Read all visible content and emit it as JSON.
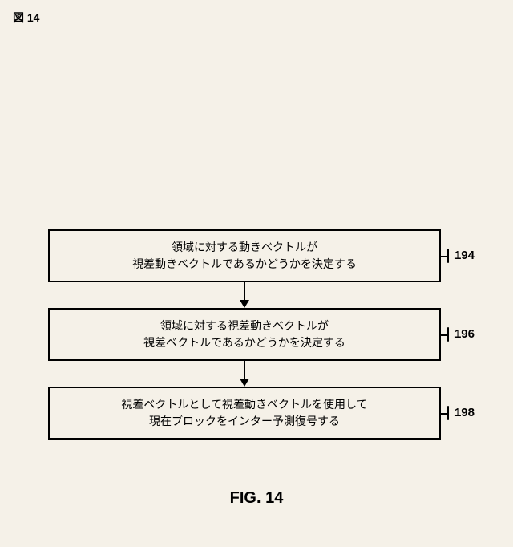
{
  "header_label": "図 14",
  "flowchart": {
    "type": "flowchart",
    "box_border_color": "#000000",
    "box_border_width": 2,
    "background_color": "#f5f1e8",
    "nodes": [
      {
        "id": "n1",
        "line1": "領域に対する動きベクトルが",
        "line2": "視差動きベクトルであるかどうかを決定する",
        "ref": "194"
      },
      {
        "id": "n2",
        "line1": "領域に対する視差動きベクトルが",
        "line2": "視差ベクトルであるかどうかを決定する",
        "ref": "196"
      },
      {
        "id": "n3",
        "line1": "視差ベクトルとして視差動きベクトルを使用して",
        "line2": "現在ブロックをインター予測復号する",
        "ref": "198"
      }
    ],
    "edges": [
      {
        "from": "n1",
        "to": "n2"
      },
      {
        "from": "n2",
        "to": "n3"
      }
    ],
    "node_font_size": 14,
    "ref_font_size": 15,
    "ref_font_weight": "bold",
    "arrow_color": "#000000"
  },
  "caption": "FIG. 14",
  "caption_font_size": 20,
  "caption_font_weight": "bold"
}
